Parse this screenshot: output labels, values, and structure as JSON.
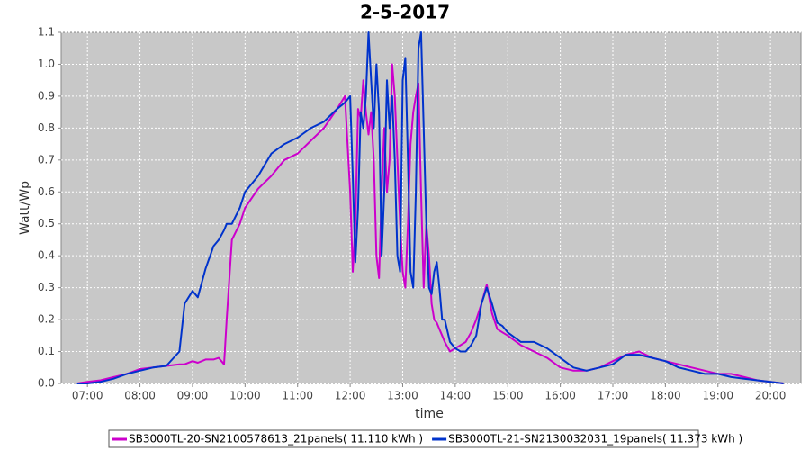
{
  "chart_data": {
    "type": "line",
    "title": "2-5-2017",
    "x_label": "time",
    "y_label": "Watt/Wp",
    "x": [
      6.8,
      7.0,
      7.25,
      7.5,
      7.75,
      8.0,
      8.25,
      8.5,
      8.75,
      8.85,
      9.0,
      9.1,
      9.25,
      9.4,
      9.5,
      9.6,
      9.65,
      9.75,
      9.9,
      10.0,
      10.25,
      10.5,
      10.75,
      11.0,
      11.25,
      11.5,
      11.75,
      11.9,
      12.0,
      12.05,
      12.1,
      12.15,
      12.2,
      12.25,
      12.3,
      12.35,
      12.4,
      12.45,
      12.5,
      12.55,
      12.6,
      12.65,
      12.7,
      12.75,
      12.8,
      12.85,
      12.9,
      12.95,
      13.0,
      13.05,
      13.1,
      13.15,
      13.2,
      13.25,
      13.3,
      13.35,
      13.4,
      13.45,
      13.5,
      13.55,
      13.6,
      13.65,
      13.7,
      13.75,
      13.8,
      13.9,
      14.0,
      14.1,
      14.2,
      14.3,
      14.4,
      14.5,
      14.6,
      14.7,
      14.8,
      14.9,
      15.0,
      15.25,
      15.5,
      15.75,
      16.0,
      16.25,
      16.5,
      16.75,
      17.0,
      17.25,
      17.5,
      17.75,
      18.0,
      18.25,
      18.5,
      18.75,
      19.0,
      19.25,
      19.5,
      19.75,
      20.0,
      20.25
    ],
    "series": [
      {
        "name": "SB3000TL-20-SN2100578613_21panels( 11.110 kWh )",
        "color": "#cc00cc",
        "values": [
          0,
          0.005,
          0.01,
          0.02,
          0.03,
          0.045,
          0.05,
          0.055,
          0.06,
          0.06,
          0.07,
          0.065,
          0.075,
          0.075,
          0.08,
          0.06,
          0.2,
          0.45,
          0.5,
          0.55,
          0.61,
          0.65,
          0.7,
          0.72,
          0.76,
          0.8,
          0.86,
          0.9,
          0.6,
          0.35,
          0.5,
          0.86,
          0.83,
          0.95,
          0.85,
          0.78,
          0.85,
          0.7,
          0.4,
          0.33,
          0.6,
          0.8,
          0.6,
          0.7,
          1.0,
          0.9,
          0.7,
          0.5,
          0.35,
          0.3,
          0.5,
          0.75,
          0.85,
          0.9,
          0.94,
          0.6,
          0.3,
          0.5,
          0.4,
          0.25,
          0.2,
          0.19,
          0.17,
          0.15,
          0.13,
          0.1,
          0.11,
          0.12,
          0.13,
          0.16,
          0.2,
          0.25,
          0.31,
          0.22,
          0.17,
          0.16,
          0.15,
          0.12,
          0.1,
          0.08,
          0.05,
          0.04,
          0.04,
          0.05,
          0.07,
          0.09,
          0.1,
          0.08,
          0.07,
          0.06,
          0.05,
          0.04,
          0.03,
          0.03,
          0.02,
          0.01,
          0.005,
          0
        ]
      },
      {
        "name": "SB3000TL-21-SN2130032031_19panels( 11.373 kWh )",
        "color": "#0033cc",
        "values": [
          0,
          0,
          0.005,
          0.015,
          0.03,
          0.04,
          0.05,
          0.055,
          0.1,
          0.25,
          0.29,
          0.27,
          0.36,
          0.43,
          0.45,
          0.48,
          0.5,
          0.5,
          0.55,
          0.6,
          0.65,
          0.72,
          0.75,
          0.77,
          0.8,
          0.82,
          0.86,
          0.88,
          0.9,
          0.65,
          0.38,
          0.55,
          0.85,
          0.8,
          0.9,
          1.1,
          0.95,
          0.8,
          1.0,
          0.85,
          0.4,
          0.6,
          0.95,
          0.8,
          0.9,
          0.7,
          0.4,
          0.35,
          0.95,
          1.02,
          0.7,
          0.35,
          0.3,
          0.6,
          1.05,
          1.1,
          0.8,
          0.5,
          0.3,
          0.28,
          0.35,
          0.38,
          0.3,
          0.2,
          0.2,
          0.13,
          0.11,
          0.1,
          0.1,
          0.12,
          0.15,
          0.25,
          0.3,
          0.25,
          0.19,
          0.18,
          0.16,
          0.13,
          0.13,
          0.11,
          0.08,
          0.05,
          0.04,
          0.05,
          0.06,
          0.09,
          0.09,
          0.08,
          0.07,
          0.05,
          0.04,
          0.03,
          0.03,
          0.02,
          0.015,
          0.01,
          0.005,
          0
        ]
      }
    ],
    "xlim": [
      6.5,
      20.58
    ],
    "xticks": [
      {
        "value": 7,
        "label": "07:00"
      },
      {
        "value": 8,
        "label": "08:00"
      },
      {
        "value": 9,
        "label": "09:00"
      },
      {
        "value": 10,
        "label": "10:00"
      },
      {
        "value": 11,
        "label": "11:00"
      },
      {
        "value": 12,
        "label": "12:00"
      },
      {
        "value": 13,
        "label": "13:00"
      },
      {
        "value": 14,
        "label": "14:00"
      },
      {
        "value": 15,
        "label": "15:00"
      },
      {
        "value": 16,
        "label": "16:00"
      },
      {
        "value": 17,
        "label": "17:00"
      },
      {
        "value": 18,
        "label": "18:00"
      },
      {
        "value": 19,
        "label": "19:00"
      },
      {
        "value": 20,
        "label": "20:00"
      }
    ],
    "ylim": [
      0,
      1.1
    ],
    "yticks": [
      {
        "value": 0,
        "label": "0.0"
      },
      0.1,
      0.2,
      0.3,
      0.4,
      0.5,
      0.6,
      0.7,
      0.8,
      0.9,
      {
        "value": 1,
        "label": "1.0"
      },
      1.1
    ],
    "grid": true,
    "legend": "bottom"
  }
}
